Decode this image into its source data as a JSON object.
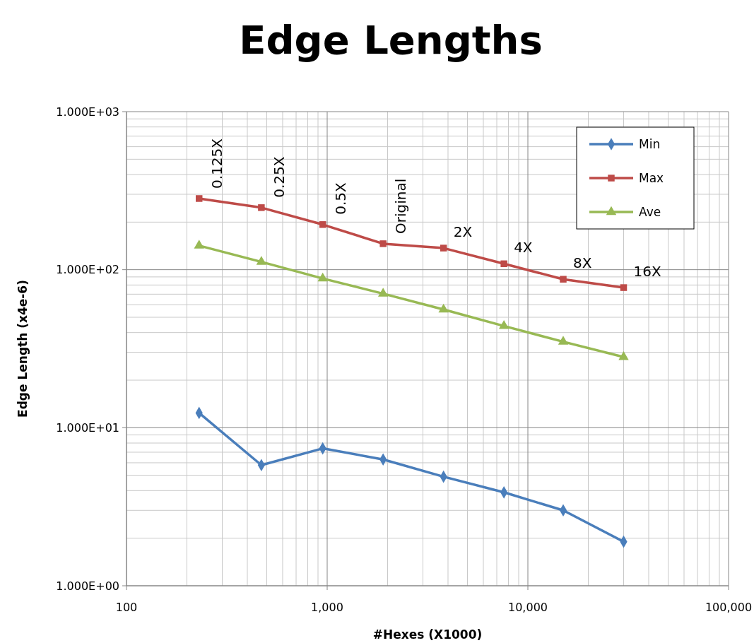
{
  "chart_data": {
    "type": "line",
    "title": "Edge Lengths",
    "xlabel": "#Hexes (X1000)",
    "ylabel": "Edge Length (x4e-6)",
    "log": "xy",
    "grid": true,
    "legend": "top right",
    "line_style": "solid",
    "xlim": [
      100,
      100000
    ],
    "xticks": [
      100,
      {
        "value": 1000,
        "label": "1,000"
      },
      {
        "value": 10000,
        "label": "10,000"
      },
      {
        "value": 100000,
        "label": "100,000"
      }
    ],
    "ylim": [
      1,
      1000
    ],
    "yticks": [
      {
        "value": 1,
        "label": "1.000E+00"
      },
      {
        "value": 10,
        "label": "1.000E+01"
      },
      {
        "value": 100,
        "label": "1.000E+02"
      },
      {
        "value": 1000,
        "label": "1.000E+03"
      }
    ],
    "x": [
      230,
      470,
      950,
      1900,
      3800,
      7600,
      15000,
      30000
    ],
    "series": [
      {
        "name": "Min",
        "color": "#4a7ebb",
        "marker": "diamond",
        "values": [
          12.4,
          5.8,
          7.4,
          6.3,
          4.9,
          3.9,
          3.0,
          1.9
        ]
      },
      {
        "name": "Max",
        "color": "#be4b48",
        "marker": "square",
        "values": [
          282,
          247,
          193,
          146,
          137,
          109,
          87,
          77
        ]
      },
      {
        "name": "Ave",
        "color": "#98b954",
        "marker": "triangle",
        "values": [
          142,
          112,
          88,
          70.5,
          56,
          44,
          35,
          28
        ]
      }
    ],
    "annotations": [
      {
        "text": "0.125X",
        "x": 230,
        "y": 282
      },
      {
        "text": "0.25X",
        "x": 470,
        "y": 247
      },
      {
        "text": "0.5X",
        "x": 950,
        "y": 193
      },
      {
        "text": "Original",
        "x": 1900,
        "y": 146
      },
      {
        "text": "2X",
        "x": 3800,
        "y": 137
      },
      {
        "text": "4X",
        "x": 7600,
        "y": 109
      },
      {
        "text": "8X",
        "x": 15000,
        "y": 87
      },
      {
        "text": "16X",
        "x": 30000,
        "y": 77
      }
    ]
  }
}
